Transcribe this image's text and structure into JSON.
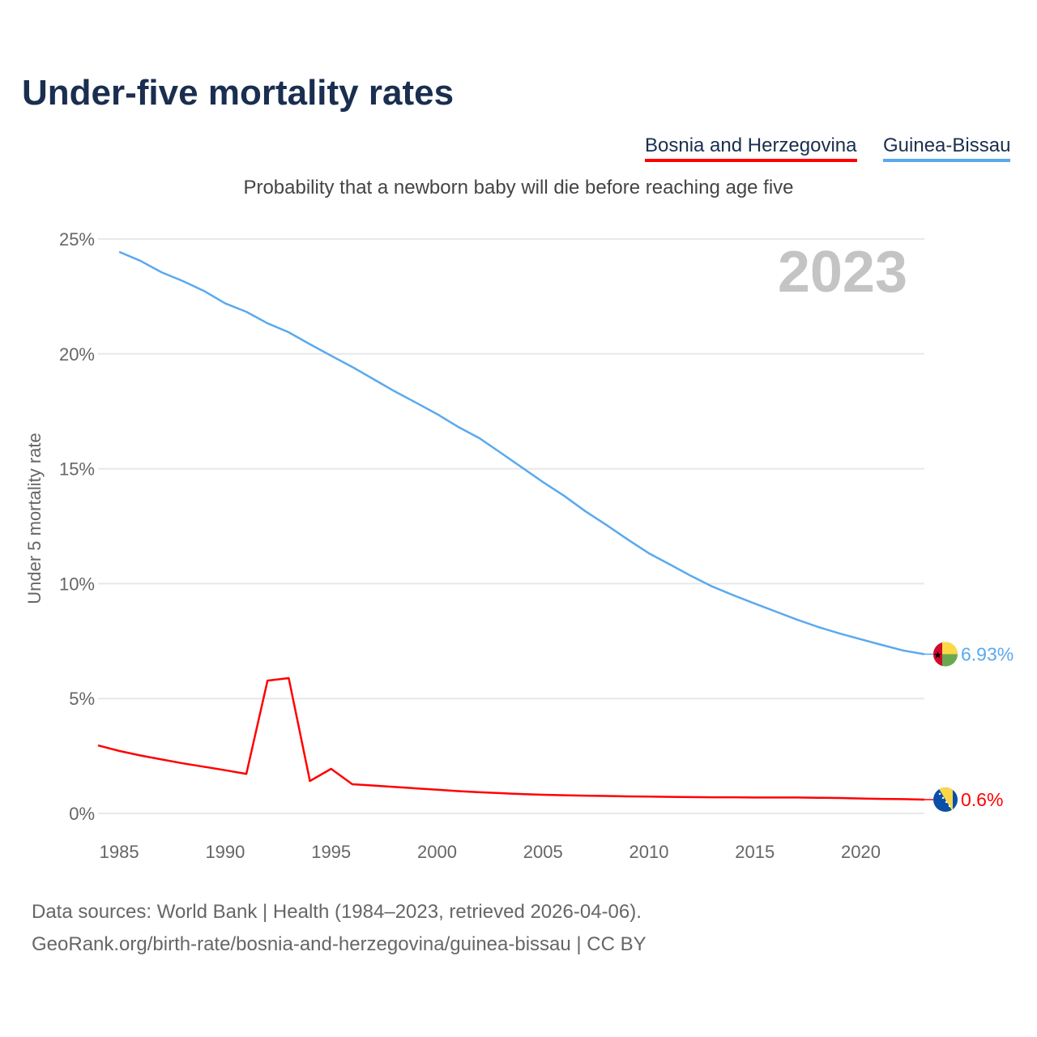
{
  "chart_data": {
    "type": "line",
    "title": "Under-five mortality rates",
    "subtitle": "Probability that a newborn baby will die before reaching age five",
    "ylabel": "Under 5 mortality rate",
    "xlabel": "",
    "year_label": "2023",
    "ylim": [
      0,
      25
    ],
    "xlim": [
      1984,
      2023
    ],
    "yticks": [
      0,
      5,
      10,
      15,
      20,
      25
    ],
    "ytick_labels": [
      "0%",
      "5%",
      "10%",
      "15%",
      "20%",
      "25%"
    ],
    "xticks": [
      1985,
      1990,
      1995,
      2000,
      2005,
      2010,
      2015,
      2020
    ],
    "xtick_labels": [
      "1985",
      "1990",
      "1995",
      "2000",
      "2005",
      "2010",
      "2015",
      "2020"
    ],
    "grid": true,
    "legend_position": "top-right",
    "series": [
      {
        "name": "Bosnia and Herzegovina",
        "color": "#ff0000",
        "end_label": "0.6%",
        "x_start": 1984,
        "values": [
          2.96,
          2.72,
          2.52,
          2.35,
          2.18,
          2.03,
          1.88,
          1.72,
          5.78,
          5.89,
          1.41,
          1.94,
          1.27,
          1.21,
          1.15,
          1.09,
          1.03,
          0.97,
          0.92,
          0.88,
          0.84,
          0.81,
          0.79,
          0.77,
          0.76,
          0.74,
          0.73,
          0.72,
          0.71,
          0.7,
          0.7,
          0.69,
          0.69,
          0.69,
          0.68,
          0.67,
          0.65,
          0.63,
          0.62,
          0.6
        ]
      },
      {
        "name": "Guinea-Bissau",
        "color": "#5aa9ee",
        "end_label": "6.93%",
        "x_start": 1985,
        "values": [
          24.44,
          24.05,
          23.55,
          23.17,
          22.74,
          22.2,
          21.83,
          21.33,
          20.94,
          20.42,
          19.92,
          19.43,
          18.9,
          18.37,
          17.88,
          17.38,
          16.82,
          16.33,
          15.7,
          15.06,
          14.42,
          13.82,
          13.15,
          12.55,
          11.92,
          11.32,
          10.83,
          10.33,
          9.87,
          9.49,
          9.13,
          8.78,
          8.43,
          8.11,
          7.83,
          7.58,
          7.33,
          7.09,
          6.93
        ]
      }
    ]
  },
  "source": {
    "line1": "Data sources: World Bank | Health (1984–2023, retrieved 2026-04-06).",
    "line2": "GeoRank.org/birth-rate/bosnia-and-herzegovina/guinea-bissau | CC BY"
  }
}
